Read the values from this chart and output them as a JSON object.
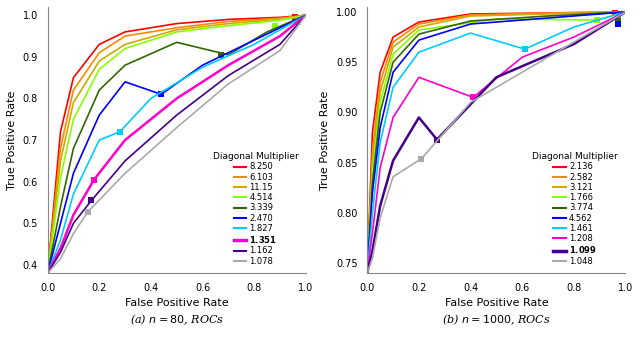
{
  "plot_a": {
    "title": "(a) $n = 80$, ROCs",
    "curves": [
      {
        "label": "8.250",
        "color": "#ff0000",
        "bold": false,
        "marker_x": 0.96,
        "marker_y": 0.995,
        "pts": [
          [
            0,
            0.38
          ],
          [
            0.05,
            0.72
          ],
          [
            0.1,
            0.85
          ],
          [
            0.2,
            0.93
          ],
          [
            0.3,
            0.96
          ],
          [
            0.5,
            0.98
          ],
          [
            0.7,
            0.99
          ],
          [
            0.9,
            0.995
          ],
          [
            1.0,
            1.0
          ]
        ]
      },
      {
        "label": "6.103",
        "color": "#ff8800",
        "bold": false,
        "marker_x": 0.97,
        "marker_y": 0.99,
        "pts": [
          [
            0,
            0.38
          ],
          [
            0.05,
            0.68
          ],
          [
            0.1,
            0.82
          ],
          [
            0.2,
            0.91
          ],
          [
            0.3,
            0.95
          ],
          [
            0.5,
            0.97
          ],
          [
            0.7,
            0.985
          ],
          [
            0.9,
            0.993
          ],
          [
            1.0,
            1.0
          ]
        ]
      },
      {
        "label": "11.15",
        "color": "#ccaa00",
        "bold": false,
        "marker_x": 0.97,
        "marker_y": 0.985,
        "pts": [
          [
            0,
            0.38
          ],
          [
            0.05,
            0.65
          ],
          [
            0.1,
            0.79
          ],
          [
            0.2,
            0.89
          ],
          [
            0.3,
            0.93
          ],
          [
            0.5,
            0.965
          ],
          [
            0.7,
            0.98
          ],
          [
            0.9,
            0.991
          ],
          [
            1.0,
            1.0
          ]
        ]
      },
      {
        "label": "4.514",
        "color": "#88ff00",
        "bold": false,
        "marker_x": 0.88,
        "marker_y": 0.975,
        "pts": [
          [
            0,
            0.38
          ],
          [
            0.05,
            0.61
          ],
          [
            0.1,
            0.75
          ],
          [
            0.2,
            0.87
          ],
          [
            0.3,
            0.92
          ],
          [
            0.5,
            0.96
          ],
          [
            0.7,
            0.975
          ],
          [
            0.9,
            0.988
          ],
          [
            1.0,
            1.0
          ]
        ]
      },
      {
        "label": "3.339",
        "color": "#336600",
        "bold": false,
        "marker_x": 0.67,
        "marker_y": 0.905,
        "pts": [
          [
            0,
            0.38
          ],
          [
            0.05,
            0.54
          ],
          [
            0.1,
            0.68
          ],
          [
            0.2,
            0.82
          ],
          [
            0.3,
            0.88
          ],
          [
            0.5,
            0.935
          ],
          [
            0.7,
            0.905
          ],
          [
            0.85,
            0.96
          ],
          [
            1.0,
            1.0
          ]
        ]
      },
      {
        "label": "2.470",
        "color": "#0000ff",
        "bold": false,
        "marker_x": 0.44,
        "marker_y": 0.81,
        "pts": [
          [
            0,
            0.38
          ],
          [
            0.05,
            0.5
          ],
          [
            0.1,
            0.62
          ],
          [
            0.2,
            0.76
          ],
          [
            0.3,
            0.84
          ],
          [
            0.44,
            0.81
          ],
          [
            0.6,
            0.88
          ],
          [
            0.8,
            0.94
          ],
          [
            1.0,
            1.0
          ]
        ]
      },
      {
        "label": "1.827",
        "color": "#00ccff",
        "bold": false,
        "marker_x": 0.28,
        "marker_y": 0.72,
        "pts": [
          [
            0,
            0.38
          ],
          [
            0.05,
            0.46
          ],
          [
            0.1,
            0.57
          ],
          [
            0.2,
            0.7
          ],
          [
            0.28,
            0.72
          ],
          [
            0.4,
            0.8
          ],
          [
            0.6,
            0.875
          ],
          [
            0.8,
            0.93
          ],
          [
            1.0,
            1.0
          ]
        ]
      },
      {
        "label": "1.351",
        "color": "#ff00cc",
        "bold": true,
        "marker_x": 0.18,
        "marker_y": 0.605,
        "pts": [
          [
            0,
            0.38
          ],
          [
            0.05,
            0.44
          ],
          [
            0.1,
            0.52
          ],
          [
            0.18,
            0.605
          ],
          [
            0.3,
            0.7
          ],
          [
            0.5,
            0.8
          ],
          [
            0.7,
            0.88
          ],
          [
            0.9,
            0.95
          ],
          [
            1.0,
            1.0
          ]
        ]
      },
      {
        "label": "1.162",
        "color": "#440088",
        "bold": false,
        "marker_x": 0.17,
        "marker_y": 0.555,
        "pts": [
          [
            0,
            0.38
          ],
          [
            0.05,
            0.43
          ],
          [
            0.1,
            0.5
          ],
          [
            0.17,
            0.555
          ],
          [
            0.3,
            0.65
          ],
          [
            0.5,
            0.76
          ],
          [
            0.7,
            0.855
          ],
          [
            0.9,
            0.93
          ],
          [
            1.0,
            1.0
          ]
        ]
      },
      {
        "label": "1.078",
        "color": "#aaaaaa",
        "bold": false,
        "marker_x": 0.155,
        "marker_y": 0.527,
        "pts": [
          [
            0,
            0.38
          ],
          [
            0.05,
            0.415
          ],
          [
            0.1,
            0.475
          ],
          [
            0.155,
            0.527
          ],
          [
            0.3,
            0.62
          ],
          [
            0.5,
            0.73
          ],
          [
            0.7,
            0.835
          ],
          [
            0.9,
            0.915
          ],
          [
            1.0,
            1.0
          ]
        ]
      }
    ],
    "xlim": [
      0,
      1.0
    ],
    "ylim": [
      0.38,
      1.02
    ],
    "xlabel": "False Positive Rate",
    "ylabel": "True Positive Rate",
    "yticks": [
      0.4,
      0.5,
      0.6,
      0.7,
      0.8,
      0.9,
      1.0
    ],
    "xticks": [
      0.0,
      0.2,
      0.4,
      0.6,
      0.8,
      1.0
    ]
  },
  "plot_b": {
    "title": "(b) $n = 1000$, ROCs",
    "curves": [
      {
        "label": "2.136",
        "color": "#ff0000",
        "bold": false,
        "marker_x": 0.96,
        "marker_y": 0.999,
        "pts": [
          [
            0,
            0.74
          ],
          [
            0.02,
            0.88
          ],
          [
            0.05,
            0.94
          ],
          [
            0.1,
            0.975
          ],
          [
            0.2,
            0.99
          ],
          [
            0.4,
            0.998
          ],
          [
            0.7,
            0.999
          ],
          [
            1.0,
            1.0
          ]
        ]
      },
      {
        "label": "2.582",
        "color": "#ff8800",
        "bold": false,
        "marker_x": 0.97,
        "marker_y": 0.998,
        "pts": [
          [
            0,
            0.74
          ],
          [
            0.02,
            0.86
          ],
          [
            0.05,
            0.93
          ],
          [
            0.1,
            0.97
          ],
          [
            0.2,
            0.988
          ],
          [
            0.4,
            0.997
          ],
          [
            0.7,
            0.999
          ],
          [
            1.0,
            1.0
          ]
        ]
      },
      {
        "label": "3.121",
        "color": "#ccaa00",
        "bold": false,
        "marker_x": 0.97,
        "marker_y": 0.997,
        "pts": [
          [
            0,
            0.74
          ],
          [
            0.02,
            0.85
          ],
          [
            0.05,
            0.92
          ],
          [
            0.1,
            0.965
          ],
          [
            0.2,
            0.985
          ],
          [
            0.4,
            0.996
          ],
          [
            0.7,
            0.998
          ],
          [
            1.0,
            1.0
          ]
        ]
      },
      {
        "label": "1.766",
        "color": "#88ff00",
        "bold": false,
        "marker_x": 0.89,
        "marker_y": 0.992,
        "pts": [
          [
            0,
            0.74
          ],
          [
            0.02,
            0.84
          ],
          [
            0.05,
            0.91
          ],
          [
            0.1,
            0.958
          ],
          [
            0.2,
            0.982
          ],
          [
            0.5,
            0.993
          ],
          [
            0.89,
            0.992
          ],
          [
            1.0,
            1.0
          ]
        ]
      },
      {
        "label": "3.774",
        "color": "#336600",
        "bold": false,
        "marker_x": 0.97,
        "marker_y": 0.991,
        "pts": [
          [
            0,
            0.74
          ],
          [
            0.02,
            0.83
          ],
          [
            0.05,
            0.9
          ],
          [
            0.1,
            0.95
          ],
          [
            0.2,
            0.978
          ],
          [
            0.4,
            0.991
          ],
          [
            0.7,
            0.996
          ],
          [
            1.0,
            1.0
          ]
        ]
      },
      {
        "label": "4.562",
        "color": "#0000ff",
        "bold": false,
        "marker_x": 0.97,
        "marker_y": 0.988,
        "pts": [
          [
            0,
            0.74
          ],
          [
            0.02,
            0.82
          ],
          [
            0.05,
            0.885
          ],
          [
            0.1,
            0.94
          ],
          [
            0.2,
            0.972
          ],
          [
            0.4,
            0.988
          ],
          [
            0.7,
            0.994
          ],
          [
            1.0,
            1.0
          ]
        ]
      },
      {
        "label": "1.461",
        "color": "#00ccff",
        "bold": false,
        "marker_x": 0.61,
        "marker_y": 0.963,
        "pts": [
          [
            0,
            0.74
          ],
          [
            0.02,
            0.8
          ],
          [
            0.05,
            0.87
          ],
          [
            0.1,
            0.925
          ],
          [
            0.2,
            0.96
          ],
          [
            0.4,
            0.979
          ],
          [
            0.61,
            0.963
          ],
          [
            0.8,
            0.985
          ],
          [
            1.0,
            1.0
          ]
        ]
      },
      {
        "label": "1.208",
        "color": "#ff00cc",
        "bold": false,
        "marker_x": 0.41,
        "marker_y": 0.915,
        "pts": [
          [
            0,
            0.74
          ],
          [
            0.02,
            0.78
          ],
          [
            0.05,
            0.845
          ],
          [
            0.1,
            0.895
          ],
          [
            0.2,
            0.935
          ],
          [
            0.41,
            0.915
          ],
          [
            0.6,
            0.955
          ],
          [
            0.8,
            0.975
          ],
          [
            1.0,
            1.0
          ]
        ]
      },
      {
        "label": "1.099",
        "color": "#440088",
        "bold": true,
        "marker_x": 0.27,
        "marker_y": 0.873,
        "pts": [
          [
            0,
            0.74
          ],
          [
            0.02,
            0.762
          ],
          [
            0.05,
            0.807
          ],
          [
            0.1,
            0.852
          ],
          [
            0.2,
            0.895
          ],
          [
            0.27,
            0.873
          ],
          [
            0.5,
            0.935
          ],
          [
            0.8,
            0.968
          ],
          [
            1.0,
            1.0
          ]
        ]
      },
      {
        "label": "1.048",
        "color": "#aaaaaa",
        "bold": false,
        "marker_x": 0.21,
        "marker_y": 0.854,
        "pts": [
          [
            0,
            0.74
          ],
          [
            0.02,
            0.755
          ],
          [
            0.05,
            0.795
          ],
          [
            0.1,
            0.836
          ],
          [
            0.21,
            0.854
          ],
          [
            0.4,
            0.91
          ],
          [
            0.7,
            0.955
          ],
          [
            1.0,
            1.0
          ]
        ]
      }
    ],
    "xlim": [
      0,
      1.0
    ],
    "ylim": [
      0.74,
      1.005
    ],
    "xlabel": "False Positive Rate",
    "ylabel": "True Positive Rate",
    "yticks": [
      0.75,
      0.8,
      0.85,
      0.9,
      0.95,
      1.0
    ],
    "xticks": [
      0.0,
      0.2,
      0.4,
      0.6,
      0.8,
      1.0
    ]
  },
  "legend_title": "Diagonal Multiplier",
  "background_color": "#ffffff"
}
